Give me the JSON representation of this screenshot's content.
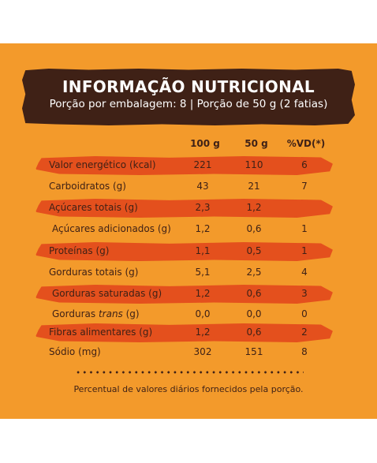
{
  "header": {
    "title": "INFORMAÇÃO NUTRICIONAL",
    "subtitle": "Porção por embalagem: 8 | Porção de 50 g (2 fatias)"
  },
  "columns": {
    "c100": "100 g",
    "c50": "50 g",
    "cvd": "%VD(*)"
  },
  "rows": [
    {
      "label": "Valor energético (kcal)",
      "v100": "221",
      "v50": "110",
      "vd": "6"
    },
    {
      "label": "Carboidratos (g)",
      "v100": "43",
      "v50": "21",
      "vd": "7"
    },
    {
      "label": "Açúcares totais (g)",
      "v100": "2,3",
      "v50": "1,2",
      "vd": ""
    },
    {
      "label": "Açúcares adicionados (g)",
      "v100": "1,2",
      "v50": "0,6",
      "vd": "1"
    },
    {
      "label": "Proteínas (g)",
      "v100": "1,1",
      "v50": "0,5",
      "vd": "1"
    },
    {
      "label": "Gorduras totais (g)",
      "v100": "5,1",
      "v50": "2,5",
      "vd": "4"
    },
    {
      "label": "Gorduras saturadas (g)",
      "v100": "1,2",
      "v50": "0,6",
      "vd": "3"
    },
    {
      "label_pre": "Gorduras ",
      "label_em": "trans",
      "label_post": " (g)",
      "v100": "0,0",
      "v50": "0,0",
      "vd": "0"
    },
    {
      "label": "Fibras alimentares (g)",
      "v100": "1,2",
      "v50": "0,6",
      "vd": "2"
    },
    {
      "label": "Sódio (mg)",
      "v100": "302",
      "v50": "151",
      "vd": "8"
    }
  ],
  "footnote": "Percentual de valores diários fornecidos pela porção.",
  "colors": {
    "background": "#f39a2b",
    "header_band": "#3f2116",
    "highlight": "#e4501d",
    "text": "#3f2116"
  }
}
